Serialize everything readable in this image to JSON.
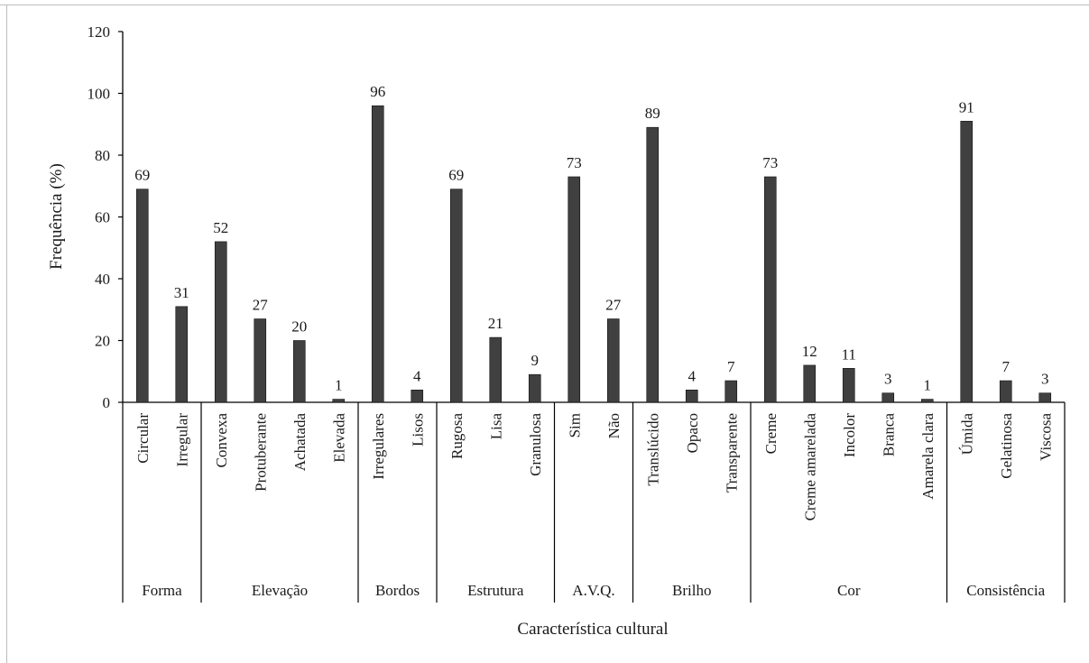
{
  "chart_data": {
    "type": "bar",
    "title": "",
    "xlabel": "Característica cultural",
    "ylabel": "Frequência (%)",
    "ylim": [
      0,
      120
    ],
    "yticks": [
      0,
      20,
      40,
      60,
      80,
      100,
      120
    ],
    "grid": false,
    "legend": "none",
    "bar_color": "#404040",
    "groups": [
      {
        "name": "Forma",
        "categories": [
          "Circular",
          "Irregular"
        ],
        "values": [
          69,
          31
        ]
      },
      {
        "name": "Elevação",
        "categories": [
          "Convexa",
          "Protuberante",
          "Achatada",
          "Elevada"
        ],
        "values": [
          52,
          27,
          20,
          1
        ]
      },
      {
        "name": "Bordos",
        "categories": [
          "Irregulares",
          "Lisos"
        ],
        "values": [
          96,
          4
        ]
      },
      {
        "name": "Estrutura",
        "categories": [
          "Rugosa",
          "Lisa",
          "Granulosa"
        ],
        "values": [
          69,
          21,
          9
        ]
      },
      {
        "name": "A.V.Q.",
        "categories": [
          "Sim",
          "Não"
        ],
        "values": [
          73,
          27
        ]
      },
      {
        "name": "Brilho",
        "categories": [
          "Translúcido",
          "Opaco",
          "Transparente"
        ],
        "values": [
          89,
          4,
          7
        ]
      },
      {
        "name": "Cor",
        "categories": [
          "Creme",
          "Creme amarelada",
          "Incolor",
          "Branca",
          "Amarela clara"
        ],
        "values": [
          73,
          12,
          11,
          3,
          1
        ]
      },
      {
        "name": "Consistência",
        "categories": [
          "Úmida",
          "Gelatinosa",
          "Viscosa"
        ],
        "values": [
          91,
          7,
          3
        ]
      }
    ]
  }
}
